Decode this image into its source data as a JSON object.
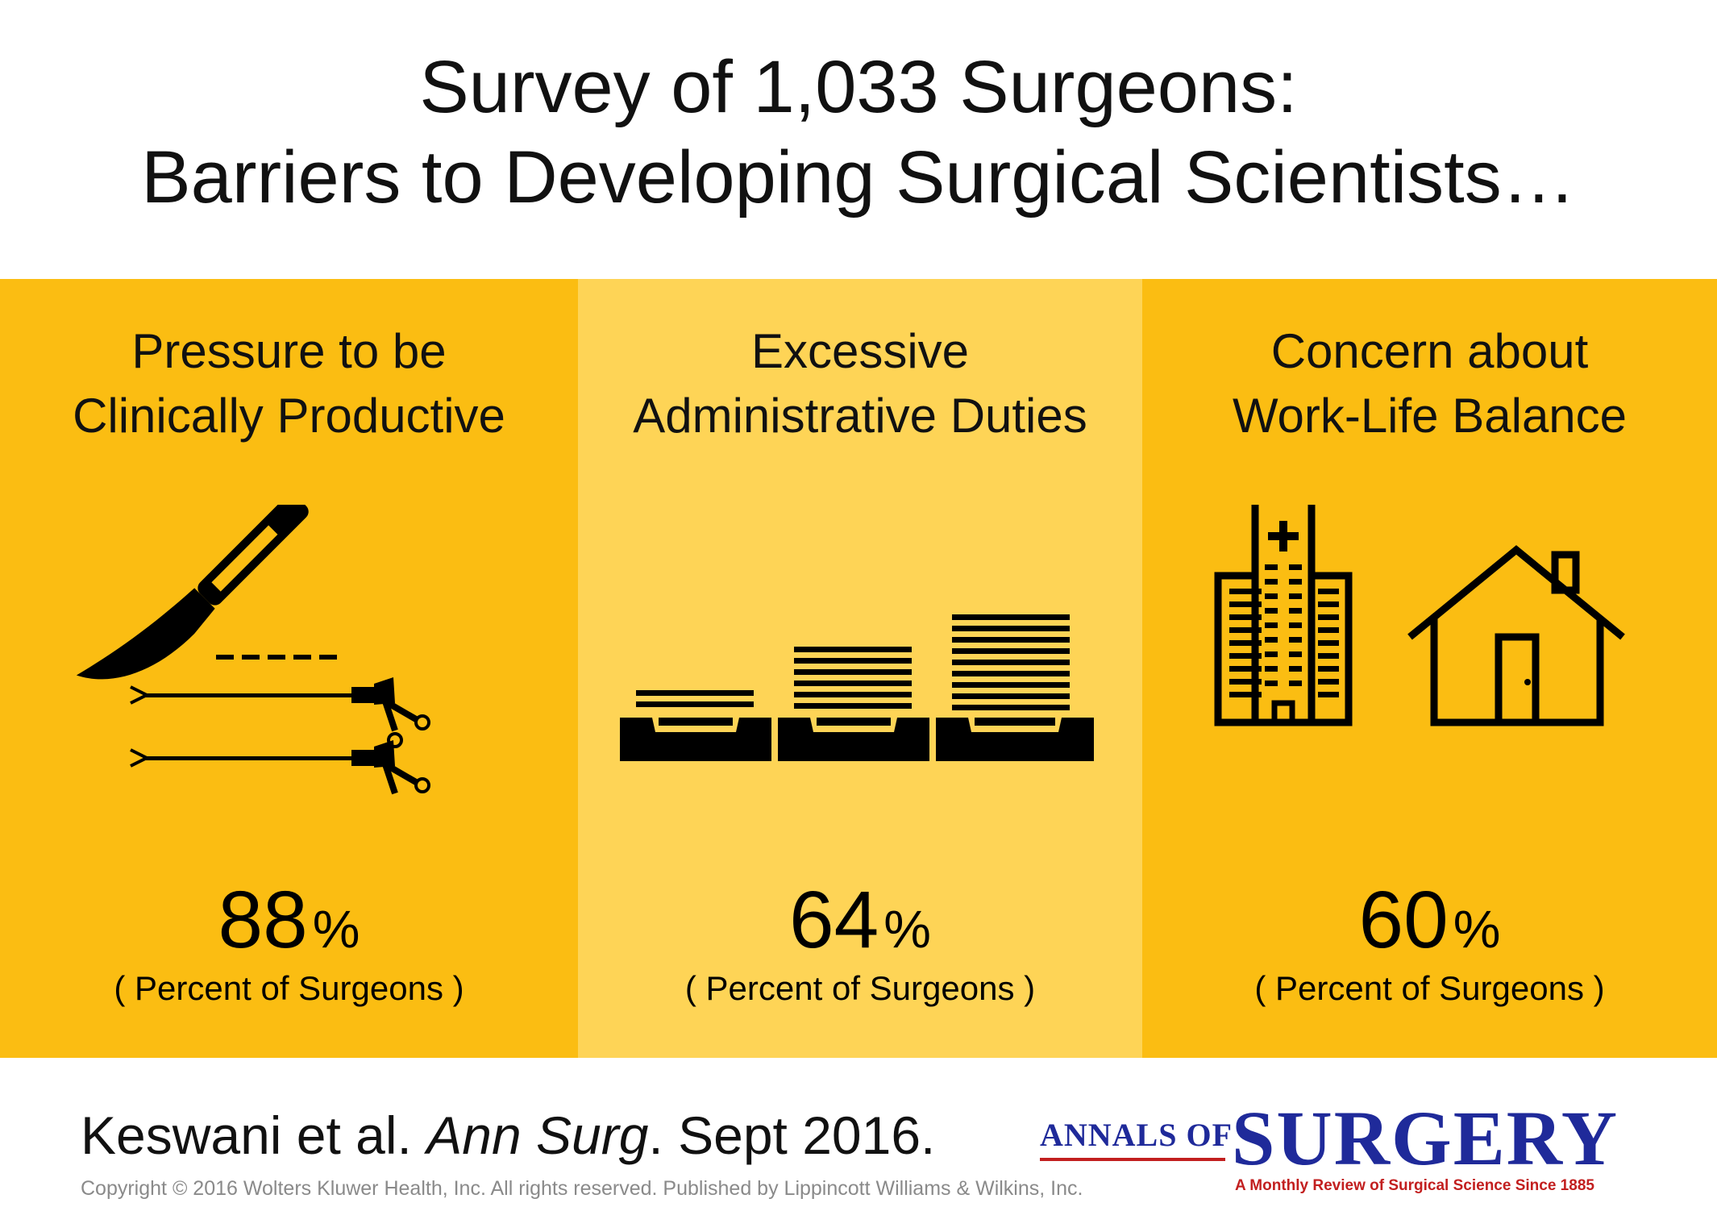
{
  "title": {
    "line1": "Survey of 1,033 Surgeons:",
    "line2": "Barriers to Developing Surgical Scientists…"
  },
  "panels": [
    {
      "title_line1": "Pressure to be",
      "title_line2": "Clinically Productive",
      "value": "88",
      "unit": "%",
      "caption": "( Percent of Surgeons )",
      "color": "#FBBD12",
      "icon": "scalpel-and-laparoscopic-instruments-icon"
    },
    {
      "title_line1": "Excessive",
      "title_line2": "Administrative Duties",
      "value": "64",
      "unit": "%",
      "caption": "( Percent of Surgeons )",
      "color": "#FED456",
      "icon": "paper-tray-stacks-icon"
    },
    {
      "title_line1": "Concern about",
      "title_line2": "Work-Life Balance",
      "value": "60",
      "unit": "%",
      "caption": "( Percent of Surgeons )",
      "color": "#FBBD12",
      "icon": "hospital-and-house-icon"
    }
  ],
  "citation": {
    "authors": "Keswani et al. ",
    "journal": "Ann Surg",
    "date": ". Sept 2016."
  },
  "copyright": "Copyright © 2016 Wolters Kluwer Health, Inc. All rights reserved.  Published by Lippincott Williams & Wilkins, Inc.",
  "logo": {
    "prefix": "ANNALS OF",
    "name": "SURGERY",
    "tagline": "A Monthly Review of Surgical Science Since 1885"
  }
}
